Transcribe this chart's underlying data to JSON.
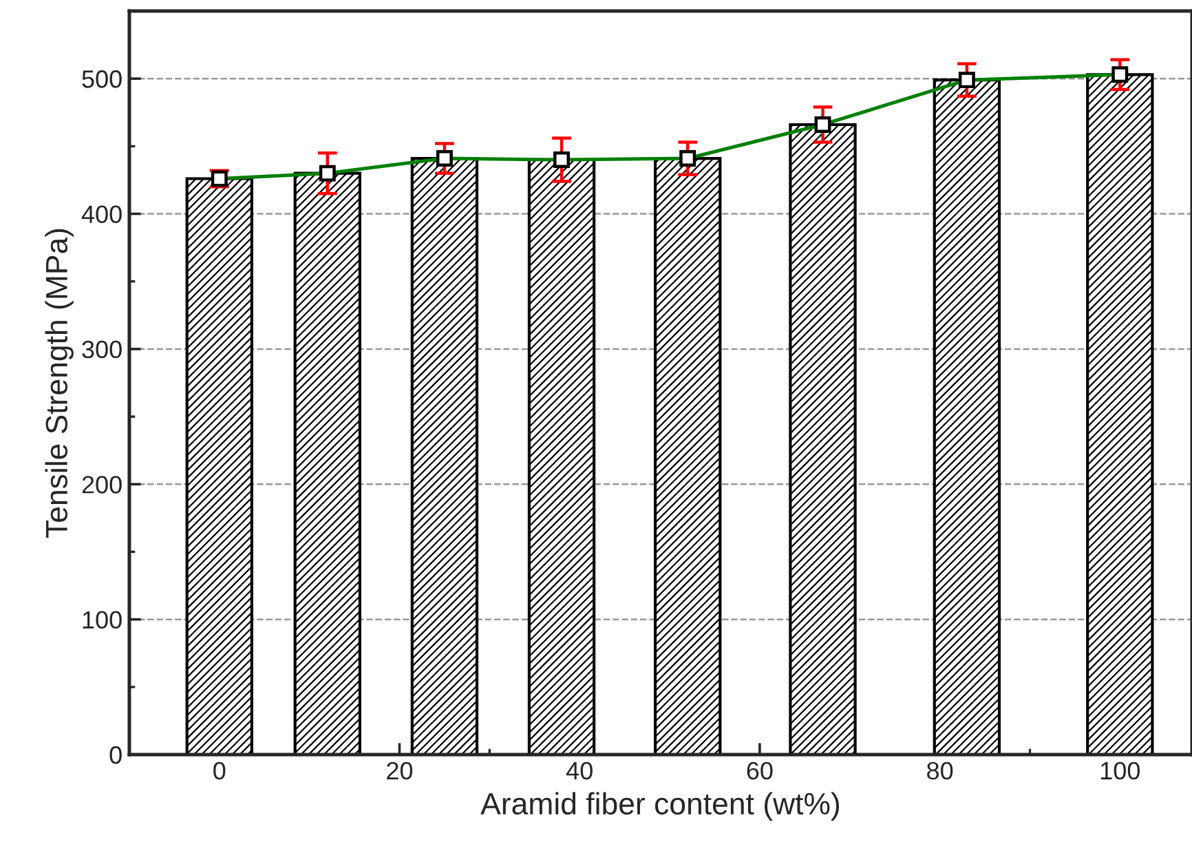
{
  "chart_data": {
    "type": "bar",
    "xlabel": "Aramid fiber content (wt%)",
    "ylabel": "Tensile Strength (MPa)",
    "x": [
      0,
      12,
      25,
      38,
      52,
      67,
      83,
      100
    ],
    "series": [
      {
        "color": "#000000",
        "values": [
          426,
          430,
          441,
          440,
          441,
          466,
          499,
          503
        ]
      },
      {
        "type": "line",
        "color": "#008000",
        "marker": "square",
        "values": [
          426,
          430,
          441,
          440,
          441,
          466,
          499,
          503
        ],
        "errors": [
          6,
          15,
          11,
          16,
          12,
          13,
          12,
          11
        ]
      }
    ],
    "xlim": [
      -10,
      108
    ],
    "xticks": [
      0,
      20,
      40,
      60,
      80,
      100
    ],
    "ylim": [
      0,
      550
    ],
    "yticks": [
      0,
      100,
      200,
      300,
      400,
      500
    ],
    "grid": "y"
  }
}
